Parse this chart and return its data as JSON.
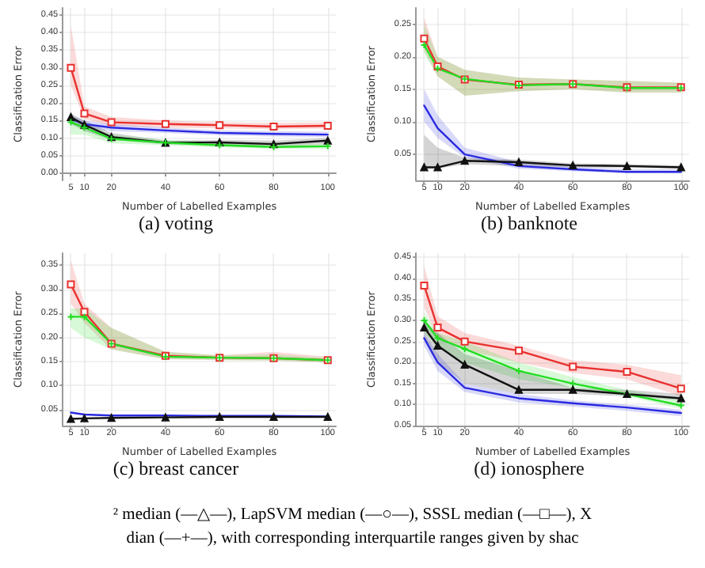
{
  "chart_data": [
    {
      "type": "line",
      "title": "(a) voting",
      "xlabel": "Number of Labelled Examples",
      "ylabel": "Classification Error",
      "x": [
        5,
        10,
        20,
        40,
        60,
        80,
        100
      ],
      "xlim": [
        2,
        103
      ],
      "xticks": [
        5,
        10,
        20,
        40,
        60,
        80,
        100
      ],
      "ylim": [
        -0.02,
        0.47
      ],
      "yticks": [
        {
          "value": 0,
          "label": "0.00"
        },
        0.05,
        {
          "value": 0.1,
          "label": "0.10"
        },
        0.15,
        {
          "value": 0.2,
          "label": "0.20"
        },
        0.25,
        {
          "value": 0.3,
          "label": "0.30"
        },
        0.35,
        {
          "value": 0.4,
          "label": "0.40"
        },
        0.45
      ],
      "grid": true,
      "series": [
        {
          "color": "#e8302e",
          "marker": "square",
          "values": [
            0.3,
            0.17,
            0.145,
            0.14,
            0.137,
            0.133,
            0.135
          ],
          "lower": [
            0.25,
            0.155,
            0.135,
            0.13,
            0.128,
            0.125,
            0.127
          ],
          "upper": [
            0.42,
            0.19,
            0.16,
            0.15,
            0.145,
            0.143,
            0.145
          ]
        },
        {
          "color": "#2a2ae0",
          "marker": "none",
          "values": [
            0.155,
            0.14,
            0.13,
            0.122,
            0.115,
            0.112,
            0.11
          ],
          "lower": [
            0.14,
            0.13,
            0.12,
            0.115,
            0.108,
            0.105,
            0.103
          ],
          "upper": [
            0.165,
            0.15,
            0.14,
            0.13,
            0.122,
            0.12,
            0.118
          ]
        },
        {
          "color": "#111111",
          "marker": "triangle",
          "values": [
            0.16,
            0.138,
            0.103,
            0.087,
            0.088,
            0.083,
            0.093
          ],
          "lower": [
            0.14,
            0.12,
            0.095,
            0.082,
            0.08,
            0.077,
            0.082
          ],
          "upper": [
            0.17,
            0.15,
            0.115,
            0.093,
            0.095,
            0.093,
            0.1
          ]
        },
        {
          "color": "#22dd22",
          "marker": "cross",
          "values": [
            0.145,
            0.13,
            0.098,
            0.087,
            0.08,
            0.075,
            0.077
          ],
          "lower": [
            0.11,
            0.11,
            0.085,
            0.08,
            0.073,
            0.07,
            0.07
          ],
          "upper": [
            0.165,
            0.14,
            0.11,
            0.095,
            0.088,
            0.083,
            0.083
          ]
        }
      ]
    },
    {
      "type": "line",
      "title": "(b) banknote",
      "xlabel": "Number of Labelled Examples",
      "ylabel": "Classification Error",
      "x": [
        5,
        10,
        20,
        40,
        60,
        80,
        100
      ],
      "xlim": [
        2,
        103
      ],
      "xticks": [
        5,
        10,
        20,
        40,
        60,
        80,
        100
      ],
      "ylim": [
        0.01,
        0.275
      ],
      "yticks": [
        0.05,
        {
          "value": 0.1,
          "label": "0.10"
        },
        0.15,
        {
          "value": 0.2,
          "label": "0.20"
        },
        0.25
      ],
      "grid": true,
      "series": [
        {
          "color": "#e8302e",
          "marker": "square",
          "values": [
            0.228,
            0.185,
            0.165,
            0.157,
            0.158,
            0.153,
            0.153
          ],
          "lower": [
            0.21,
            0.17,
            0.14,
            0.147,
            0.15,
            0.145,
            0.145
          ],
          "upper": [
            0.26,
            0.2,
            0.18,
            0.168,
            0.165,
            0.163,
            0.16
          ]
        },
        {
          "color": "#22dd22",
          "marker": "cross",
          "values": [
            0.218,
            0.182,
            0.166,
            0.156,
            0.158,
            0.152,
            0.152
          ],
          "lower": [
            0.205,
            0.17,
            0.14,
            0.147,
            0.15,
            0.145,
            0.145
          ],
          "upper": [
            0.25,
            0.2,
            0.18,
            0.168,
            0.165,
            0.163,
            0.16
          ]
        },
        {
          "color": "#2a2ae0",
          "marker": "none",
          "values": [
            0.125,
            0.09,
            0.05,
            0.032,
            0.027,
            0.023,
            0.023
          ],
          "lower": [
            0.1,
            0.075,
            0.045,
            0.028,
            0.024,
            0.021,
            0.021
          ],
          "upper": [
            0.15,
            0.11,
            0.06,
            0.038,
            0.031,
            0.027,
            0.027
          ]
        },
        {
          "color": "#111111",
          "marker": "triangle",
          "values": [
            0.03,
            0.03,
            0.04,
            0.038,
            0.033,
            0.032,
            0.03
          ],
          "lower": [
            0.028,
            0.028,
            0.035,
            0.032,
            0.03,
            0.029,
            0.028
          ],
          "upper": [
            0.08,
            0.06,
            0.045,
            0.042,
            0.036,
            0.035,
            0.033
          ]
        }
      ]
    },
    {
      "type": "line",
      "title": "(c) breast cancer",
      "xlabel": "Number of Labelled Examples",
      "ylabel": "Classification Error",
      "x": [
        5,
        10,
        20,
        40,
        60,
        80,
        100
      ],
      "xlim": [
        2,
        103
      ],
      "xticks": [
        5,
        10,
        20,
        40,
        60,
        80,
        100
      ],
      "ylim": [
        0.017,
        0.375
      ],
      "yticks": [
        0.05,
        {
          "value": 0.1,
          "label": "0.10"
        },
        0.15,
        {
          "value": 0.2,
          "label": "0.20"
        },
        0.25,
        {
          "value": 0.3,
          "label": "0.30"
        },
        0.35
      ],
      "grid": true,
      "series": [
        {
          "color": "#e8302e",
          "marker": "square",
          "values": [
            0.31,
            0.253,
            0.187,
            0.162,
            0.158,
            0.157,
            0.153
          ],
          "lower": [
            0.27,
            0.23,
            0.175,
            0.155,
            0.153,
            0.152,
            0.148
          ],
          "upper": [
            0.36,
            0.27,
            0.22,
            0.17,
            0.163,
            0.17,
            0.16
          ]
        },
        {
          "color": "#22dd22",
          "marker": "cross",
          "values": [
            0.243,
            0.243,
            0.187,
            0.16,
            0.158,
            0.157,
            0.153
          ],
          "lower": [
            0.22,
            0.2,
            0.175,
            0.155,
            0.153,
            0.152,
            0.148
          ],
          "upper": [
            0.26,
            0.26,
            0.22,
            0.17,
            0.163,
            0.165,
            0.158
          ]
        },
        {
          "color": "#2a2ae0",
          "marker": "none",
          "values": [
            0.044,
            0.04,
            0.038,
            0.038,
            0.037,
            0.037,
            0.036
          ]
        },
        {
          "color": "#111111",
          "marker": "triangle",
          "values": [
            0.031,
            0.032,
            0.033,
            0.034,
            0.035,
            0.035,
            0.035
          ]
        }
      ]
    },
    {
      "type": "line",
      "title": "(d) ionosphere",
      "xlabel": "Number of Labelled Examples",
      "ylabel": "Classification Error",
      "x": [
        5,
        10,
        20,
        40,
        60,
        80,
        100
      ],
      "xlim": [
        2,
        103
      ],
      "xticks": [
        5,
        10,
        20,
        40,
        60,
        80,
        100
      ],
      "ylim": [
        0.05,
        0.46
      ],
      "yticks": [
        0.05,
        {
          "value": 0.1,
          "label": "0.10"
        },
        0.15,
        {
          "value": 0.2,
          "label": "0.20"
        },
        0.25,
        {
          "value": 0.3,
          "label": "0.30"
        },
        0.35,
        {
          "value": 0.4,
          "label": "0.40"
        },
        0.45
      ],
      "grid": true,
      "annotations": [
        "² median (—△—), LapSVM median (—○—), SSSL median (—□—), X",
        "dian (—+—), with corresponding interquartile ranges given by shac"
      ],
      "series": [
        {
          "color": "#e8302e",
          "marker": "square",
          "values": [
            0.383,
            0.283,
            0.25,
            0.228,
            0.19,
            0.178,
            0.138
          ],
          "lower": [
            0.33,
            0.26,
            0.23,
            0.2,
            0.175,
            0.16,
            0.12
          ],
          "upper": [
            0.43,
            0.31,
            0.27,
            0.24,
            0.205,
            0.195,
            0.17
          ]
        },
        {
          "color": "#22dd22",
          "marker": "cross",
          "values": [
            0.3,
            0.258,
            0.232,
            0.18,
            0.15,
            0.125,
            0.098
          ],
          "lower": [
            0.27,
            0.24,
            0.2,
            0.16,
            0.14,
            0.12,
            0.09
          ],
          "upper": [
            0.32,
            0.27,
            0.25,
            0.2,
            0.165,
            0.135,
            0.11
          ]
        },
        {
          "color": "#111111",
          "marker": "triangle",
          "values": [
            0.283,
            0.24,
            0.195,
            0.135,
            0.135,
            0.125,
            0.115
          ],
          "lower": [
            0.26,
            0.2,
            0.15,
            0.125,
            0.125,
            0.12,
            0.11
          ],
          "upper": [
            0.3,
            0.27,
            0.22,
            0.18,
            0.14,
            0.135,
            0.125
          ]
        },
        {
          "color": "#2a2ae0",
          "marker": "none",
          "values": [
            0.258,
            0.2,
            0.14,
            0.115,
            0.103,
            0.093,
            0.08
          ],
          "lower": [
            0.24,
            0.18,
            0.13,
            0.105,
            0.095,
            0.085,
            0.072
          ],
          "upper": [
            0.27,
            0.22,
            0.15,
            0.125,
            0.11,
            0.1,
            0.088
          ]
        }
      ]
    }
  ]
}
